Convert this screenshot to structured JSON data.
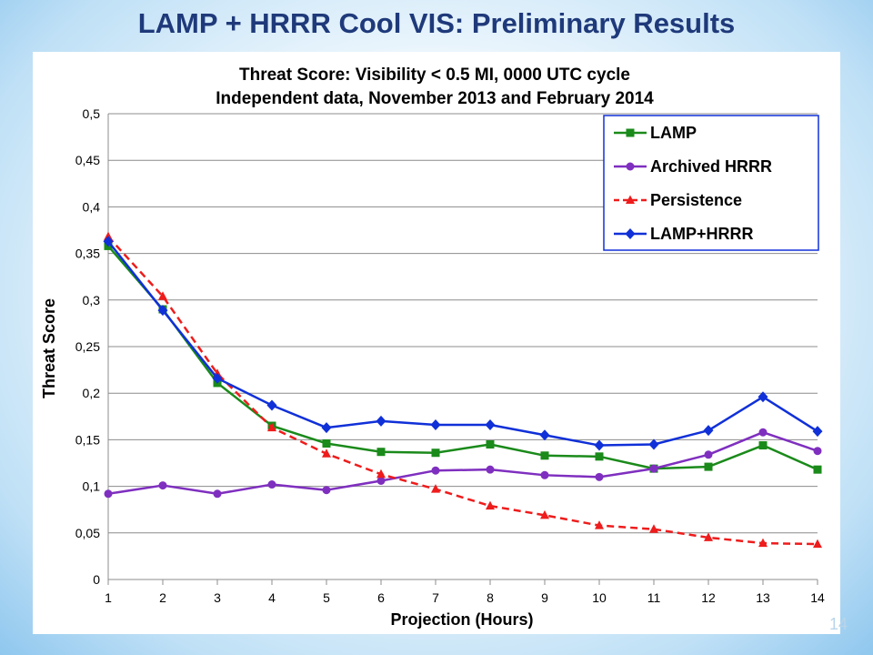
{
  "slide": {
    "title": "LAMP + HRRR Cool VIS: Preliminary Results",
    "page_number": "14"
  },
  "chart_data": {
    "type": "line",
    "title": "Threat Score: Visibility < 0.5 MI, 0000 UTC cycle",
    "subtitle": "Independent data, November 2013 and February 2014",
    "xlabel": "Projection (Hours)",
    "ylabel": "Threat Score",
    "x": [
      1,
      2,
      3,
      4,
      5,
      6,
      7,
      8,
      9,
      10,
      11,
      12,
      13,
      14
    ],
    "x_tick_labels": [
      "1",
      "2",
      "3",
      "4",
      "5",
      "6",
      "7",
      "8",
      "9",
      "10",
      "11",
      "12",
      "13",
      "14"
    ],
    "ylim": [
      0,
      0.5
    ],
    "y_ticks": [
      0,
      0.05,
      0.1,
      0.15,
      0.2,
      0.25,
      0.3,
      0.35,
      0.4,
      0.45,
      0.5
    ],
    "y_tick_labels": [
      "0",
      "0,05",
      "0,1",
      "0,15",
      "0,2",
      "0,25",
      "0,3",
      "0,35",
      "0,4",
      "0,45",
      "0,5"
    ],
    "grid": "horizontal",
    "legend_position": "top-right",
    "series": [
      {
        "name": "LAMP",
        "color": "#1a8a1a",
        "marker": "square",
        "dashed": false,
        "values": [
          0.358,
          0.29,
          0.211,
          0.165,
          0.146,
          0.137,
          0.136,
          0.145,
          0.133,
          0.132,
          0.119,
          0.121,
          0.144,
          0.118
        ]
      },
      {
        "name": "Archived HRRR",
        "color": "#7f2fbf",
        "marker": "circle",
        "dashed": false,
        "values": [
          0.092,
          0.101,
          0.092,
          0.102,
          0.096,
          0.106,
          0.117,
          0.118,
          0.112,
          0.11,
          0.119,
          0.134,
          0.158,
          0.138
        ]
      },
      {
        "name": "Persistence",
        "color": "#ee1c1c",
        "marker": "triangle",
        "dashed": true,
        "values": [
          0.368,
          0.304,
          0.221,
          0.163,
          0.135,
          0.113,
          0.097,
          0.079,
          0.069,
          0.058,
          0.054,
          0.045,
          0.039,
          0.038
        ]
      },
      {
        "name": "LAMP+HRRR",
        "color": "#1030d8",
        "marker": "diamond",
        "dashed": false,
        "values": [
          0.363,
          0.289,
          0.216,
          0.187,
          0.163,
          0.17,
          0.166,
          0.166,
          0.155,
          0.144,
          0.145,
          0.16,
          0.196,
          0.159
        ]
      }
    ]
  }
}
